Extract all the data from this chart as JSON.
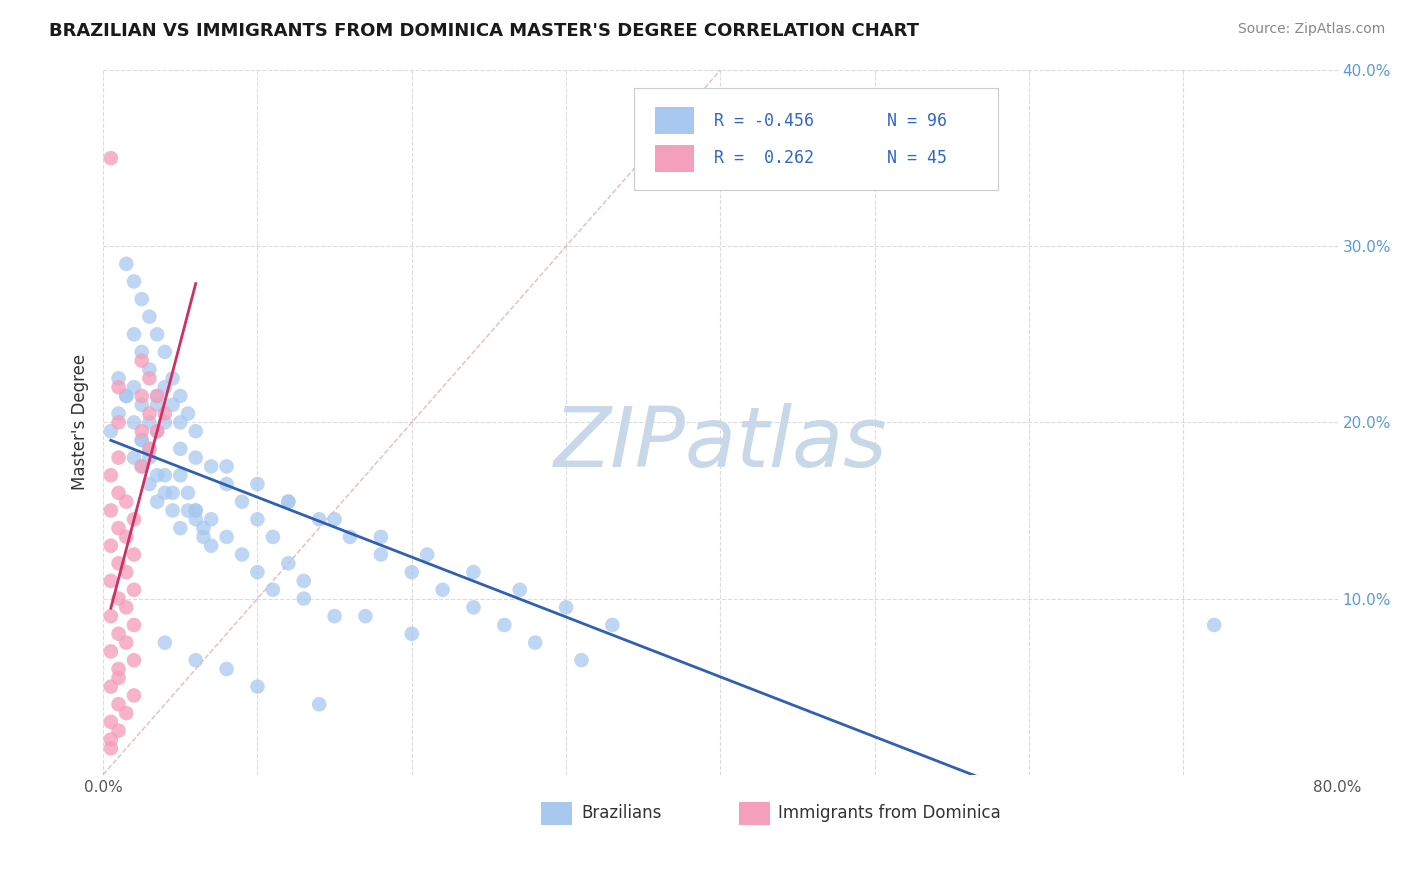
{
  "title": "BRAZILIAN VS IMMIGRANTS FROM DOMINICA MASTER'S DEGREE CORRELATION CHART",
  "source": "Source: ZipAtlas.com",
  "ylabel": "Master's Degree",
  "xlim": [
    0.0,
    0.8
  ],
  "ylim": [
    0.0,
    0.4
  ],
  "xtick_positions": [
    0.0,
    0.1,
    0.2,
    0.3,
    0.4,
    0.5,
    0.6,
    0.7,
    0.8
  ],
  "ytick_positions": [
    0.0,
    0.1,
    0.2,
    0.3,
    0.4
  ],
  "xtick_labels": [
    "0.0%",
    "",
    "",
    "",
    "",
    "",
    "",
    "",
    "80.0%"
  ],
  "ytick_labels": [
    "",
    "10.0%",
    "20.0%",
    "30.0%",
    "40.0%"
  ],
  "blue_color": "#A8C8F0",
  "pink_color": "#F4A0BC",
  "trend_blue": "#3060B0",
  "trend_pink": "#D03060",
  "diag_color": "#E08080",
  "watermark": "ZIPatlas",
  "watermark_color": "#C8D8E8",
  "legend_r1_val": "-0.456",
  "legend_n1_val": "96",
  "legend_r2_val": "0.262",
  "legend_n2_val": "45",
  "blue_scatter_x": [
    0.005,
    0.01,
    0.015,
    0.02,
    0.025,
    0.03,
    0.035,
    0.01,
    0.015,
    0.02,
    0.025,
    0.03,
    0.035,
    0.02,
    0.025,
    0.03,
    0.035,
    0.04,
    0.045,
    0.05,
    0.015,
    0.02,
    0.025,
    0.03,
    0.035,
    0.04,
    0.045,
    0.05,
    0.055,
    0.06,
    0.02,
    0.025,
    0.03,
    0.035,
    0.04,
    0.045,
    0.05,
    0.055,
    0.06,
    0.065,
    0.025,
    0.03,
    0.035,
    0.04,
    0.045,
    0.05,
    0.055,
    0.06,
    0.065,
    0.07,
    0.04,
    0.05,
    0.06,
    0.07,
    0.08,
    0.09,
    0.1,
    0.11,
    0.12,
    0.13,
    0.06,
    0.07,
    0.08,
    0.09,
    0.1,
    0.11,
    0.13,
    0.15,
    0.17,
    0.2,
    0.08,
    0.1,
    0.12,
    0.14,
    0.16,
    0.18,
    0.2,
    0.22,
    0.24,
    0.26,
    0.12,
    0.15,
    0.18,
    0.21,
    0.24,
    0.27,
    0.3,
    0.33,
    0.28,
    0.31,
    0.04,
    0.06,
    0.08,
    0.1,
    0.14,
    0.72
  ],
  "blue_scatter_y": [
    0.195,
    0.205,
    0.215,
    0.2,
    0.19,
    0.185,
    0.195,
    0.225,
    0.215,
    0.22,
    0.21,
    0.2,
    0.21,
    0.25,
    0.24,
    0.23,
    0.215,
    0.22,
    0.21,
    0.2,
    0.29,
    0.28,
    0.27,
    0.26,
    0.25,
    0.24,
    0.225,
    0.215,
    0.205,
    0.195,
    0.18,
    0.175,
    0.165,
    0.155,
    0.17,
    0.16,
    0.17,
    0.16,
    0.15,
    0.14,
    0.19,
    0.18,
    0.17,
    0.16,
    0.15,
    0.14,
    0.15,
    0.145,
    0.135,
    0.13,
    0.2,
    0.185,
    0.18,
    0.175,
    0.165,
    0.155,
    0.145,
    0.135,
    0.12,
    0.11,
    0.15,
    0.145,
    0.135,
    0.125,
    0.115,
    0.105,
    0.1,
    0.09,
    0.09,
    0.08,
    0.175,
    0.165,
    0.155,
    0.145,
    0.135,
    0.125,
    0.115,
    0.105,
    0.095,
    0.085,
    0.155,
    0.145,
    0.135,
    0.125,
    0.115,
    0.105,
    0.095,
    0.085,
    0.075,
    0.065,
    0.075,
    0.065,
    0.06,
    0.05,
    0.04,
    0.085
  ],
  "pink_scatter_x": [
    0.005,
    0.005,
    0.005,
    0.005,
    0.005,
    0.005,
    0.005,
    0.005,
    0.005,
    0.005,
    0.01,
    0.01,
    0.01,
    0.01,
    0.01,
    0.01,
    0.01,
    0.01,
    0.01,
    0.01,
    0.015,
    0.015,
    0.015,
    0.015,
    0.015,
    0.02,
    0.02,
    0.02,
    0.02,
    0.02,
    0.025,
    0.025,
    0.025,
    0.025,
    0.03,
    0.03,
    0.03,
    0.035,
    0.035,
    0.04,
    0.005,
    0.01,
    0.015,
    0.02,
    0.01
  ],
  "pink_scatter_y": [
    0.35,
    0.02,
    0.05,
    0.07,
    0.09,
    0.11,
    0.13,
    0.15,
    0.17,
    0.03,
    0.04,
    0.06,
    0.08,
    0.1,
    0.12,
    0.14,
    0.16,
    0.18,
    0.2,
    0.055,
    0.075,
    0.095,
    0.115,
    0.135,
    0.155,
    0.065,
    0.085,
    0.105,
    0.125,
    0.145,
    0.175,
    0.195,
    0.215,
    0.235,
    0.185,
    0.205,
    0.225,
    0.195,
    0.215,
    0.205,
    0.015,
    0.025,
    0.035,
    0.045,
    0.22
  ],
  "diag_line_x": [
    0.0,
    0.4
  ],
  "diag_line_y": [
    0.0,
    0.4
  ],
  "blue_trend_x": [
    0.005,
    0.75
  ],
  "pink_trend_x": [
    0.005,
    0.06
  ]
}
